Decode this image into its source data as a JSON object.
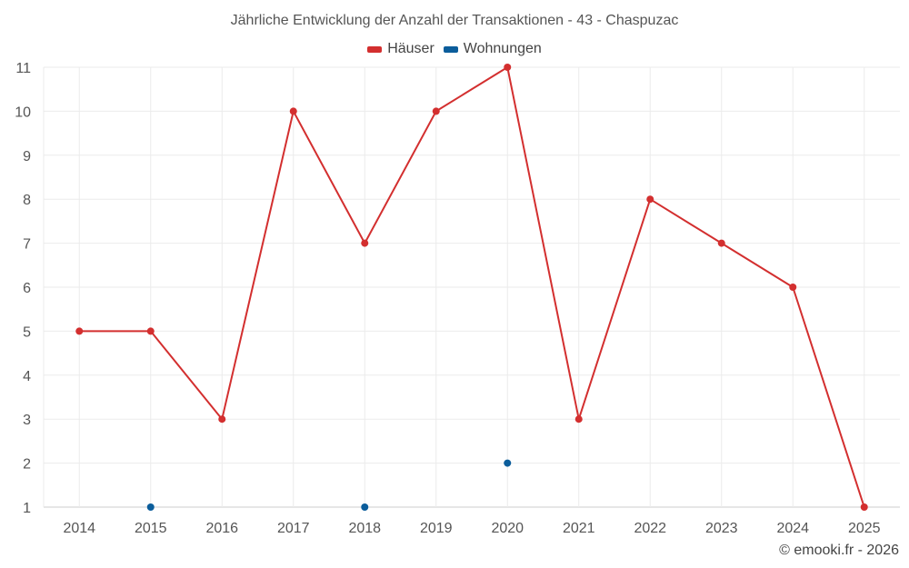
{
  "chart_data": {
    "type": "line",
    "title": "Jährliche Entwicklung der Anzahl der Transaktionen - 43 - Chaspuzac",
    "categories": [
      "2014",
      "2015",
      "2016",
      "2017",
      "2018",
      "2019",
      "2020",
      "2021",
      "2022",
      "2023",
      "2024",
      "2025"
    ],
    "series": [
      {
        "name": "Häuser",
        "color": "#d32f2f",
        "values": [
          5,
          5,
          3,
          10,
          7,
          10,
          11,
          3,
          8,
          7,
          6,
          1
        ],
        "style": "line-markers"
      },
      {
        "name": "Wohnungen",
        "color": "#0b5d9b",
        "values": [
          null,
          1,
          null,
          null,
          1,
          null,
          2,
          null,
          null,
          null,
          null,
          null
        ],
        "style": "markers"
      }
    ],
    "ylim": [
      1,
      11
    ],
    "yticks": [
      1,
      2,
      3,
      4,
      5,
      6,
      7,
      8,
      9,
      10,
      11
    ],
    "grid": true,
    "legend": "top-center"
  },
  "credit": "© emooki.fr - 2026"
}
